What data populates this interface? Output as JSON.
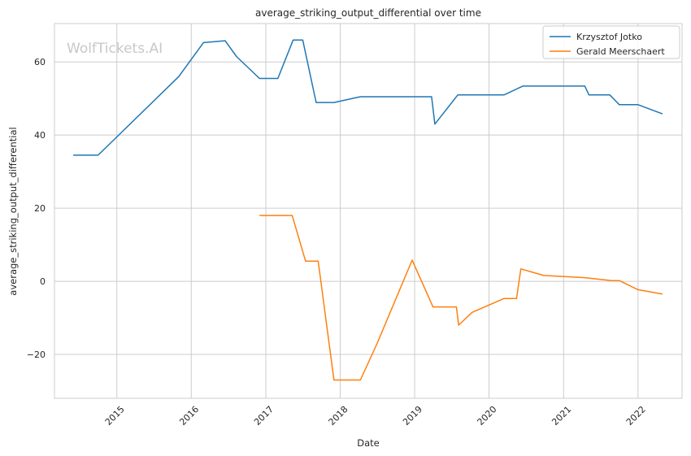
{
  "chart_data": {
    "type": "line",
    "title": "average_striking_output_differential over time",
    "xlabel": "Date",
    "ylabel": "average_striking_output_differential",
    "watermark": "WolfTickets.AI",
    "x_ticks": [
      "2015",
      "2016",
      "2017",
      "2018",
      "2019",
      "2020",
      "2021",
      "2022"
    ],
    "y_ticks": [
      -20,
      0,
      20,
      40,
      60
    ],
    "xlim": [
      "2014-03-01",
      "2022-08-05"
    ],
    "ylim": [
      -32,
      70.5
    ],
    "grid": true,
    "legend_position": "top-right",
    "colors": {
      "series_0": "#1f77b4",
      "series_1": "#ff7f0e",
      "grid": "#cccccc",
      "frame": "#cccccc"
    },
    "series": [
      {
        "name": "Krzysztof Jotko",
        "points": [
          [
            "2014-06-01",
            34.5
          ],
          [
            "2014-10-01",
            34.5
          ],
          [
            "2015-11-01",
            56.0
          ],
          [
            "2016-03-01",
            65.3
          ],
          [
            "2016-06-15",
            65.8
          ],
          [
            "2016-08-10",
            61.5
          ],
          [
            "2016-12-01",
            55.5
          ],
          [
            "2017-03-01",
            55.5
          ],
          [
            "2017-05-15",
            66.0
          ],
          [
            "2017-07-01",
            66.0
          ],
          [
            "2017-09-05",
            48.9
          ],
          [
            "2017-12-01",
            48.9
          ],
          [
            "2018-04-10",
            50.5
          ],
          [
            "2019-03-25",
            50.5
          ],
          [
            "2019-04-10",
            43.0
          ],
          [
            "2019-08-01",
            51.0
          ],
          [
            "2020-03-15",
            51.0
          ],
          [
            "2020-06-15",
            53.4
          ],
          [
            "2021-04-15",
            53.4
          ],
          [
            "2021-05-05",
            51.0
          ],
          [
            "2021-08-15",
            51.0
          ],
          [
            "2021-10-01",
            48.3
          ],
          [
            "2022-01-01",
            48.3
          ],
          [
            "2022-05-01",
            45.8
          ]
        ]
      },
      {
        "name": "Gerald Meerschaert",
        "points": [
          [
            "2016-12-01",
            18.0
          ],
          [
            "2017-05-10",
            18.0
          ],
          [
            "2017-07-15",
            5.5
          ],
          [
            "2017-09-15",
            5.5
          ],
          [
            "2017-12-01",
            -27.0
          ],
          [
            "2018-04-10",
            -27.0
          ],
          [
            "2018-07-01",
            -17.0
          ],
          [
            "2018-12-20",
            5.8
          ],
          [
            "2019-04-01",
            -7.0
          ],
          [
            "2019-07-25",
            -7.0
          ],
          [
            "2019-08-05",
            -12.0
          ],
          [
            "2019-10-10",
            -8.5
          ],
          [
            "2020-03-15",
            -4.7
          ],
          [
            "2020-05-15",
            -4.7
          ],
          [
            "2020-06-05",
            3.4
          ],
          [
            "2020-09-25",
            1.6
          ],
          [
            "2021-04-15",
            1.0
          ],
          [
            "2021-08-25",
            0.2
          ],
          [
            "2021-10-01",
            0.2
          ],
          [
            "2022-01-01",
            -2.3
          ],
          [
            "2022-05-01",
            -3.5
          ]
        ]
      }
    ]
  }
}
